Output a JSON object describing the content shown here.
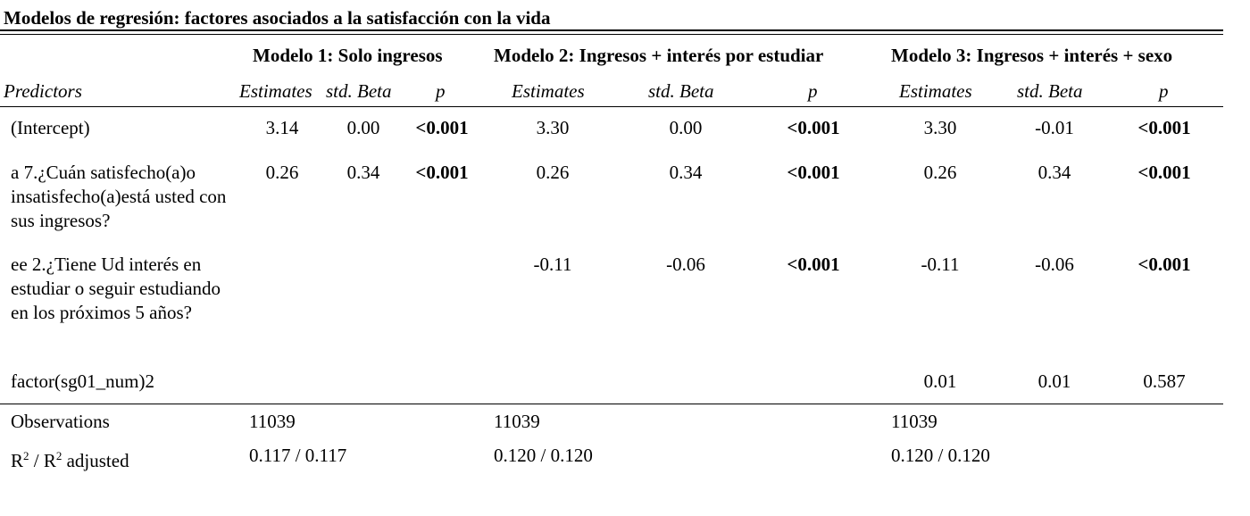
{
  "caption": "Modelos de regresión: factores asociados a la satisfacción con la vida",
  "models": [
    "Modelo 1: Solo ingresos",
    "Modelo 2: Ingresos + interés por estudiar",
    "Modelo 3: Ingresos + interés + sexo"
  ],
  "subheaders": {
    "predictors": "Predictors",
    "estimates": "Estimates",
    "std_beta": "std. Beta",
    "p": "p"
  },
  "rows": [
    {
      "label": "(Intercept)",
      "m1": {
        "est": "3.14",
        "beta": "0.00",
        "p": "<0.001"
      },
      "m2": {
        "est": "3.30",
        "beta": "0.00",
        "p": "<0.001"
      },
      "m3": {
        "est": "3.30",
        "beta": "-0.01",
        "p": "<0.001"
      }
    },
    {
      "label": "a 7.¿Cuán satisfecho(a)o insatisfecho(a)está usted con sus ingresos?",
      "m1": {
        "est": "0.26",
        "beta": "0.34",
        "p": "<0.001"
      },
      "m2": {
        "est": "0.26",
        "beta": "0.34",
        "p": "<0.001"
      },
      "m3": {
        "est": "0.26",
        "beta": "0.34",
        "p": "<0.001"
      }
    },
    {
      "label": "ee 2.¿Tiene Ud interés en estudiar o seguir estudiando en los próximos 5 años?",
      "m2": {
        "est": "-0.11",
        "beta": "-0.06",
        "p": "<0.001"
      },
      "m3": {
        "est": "-0.11",
        "beta": "-0.06",
        "p": "<0.001"
      }
    },
    {
      "label": "factor(sg01_num)2",
      "m3": {
        "est": "0.01",
        "beta": "0.01",
        "p": "0.587"
      }
    }
  ],
  "footer": {
    "observations_label": "Observations",
    "observations": [
      "11039",
      "11039",
      "11039"
    ],
    "r2_label_r": "R",
    "r2_label_sup": "2",
    "r2_label_mid": " / R",
    "r2_label_end": " adjusted",
    "r2": [
      "0.117 / 0.117",
      "0.120 / 0.120",
      "0.120 / 0.120"
    ]
  }
}
